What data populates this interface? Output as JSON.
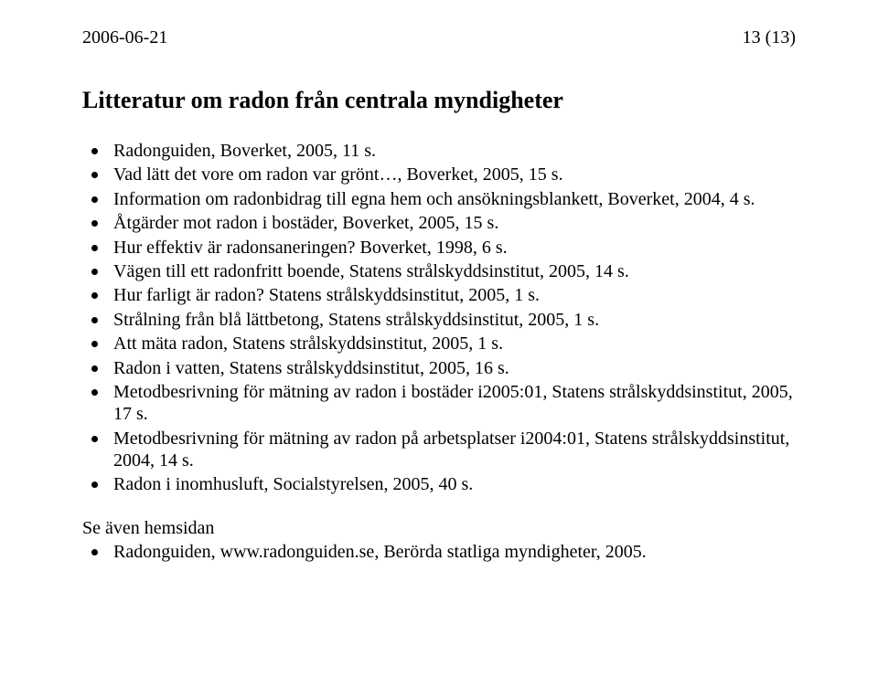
{
  "header": {
    "date": "2006-06-21",
    "page": "13 (13)"
  },
  "title": "Litteratur om radon från centrala myndigheter",
  "references": [
    "Radonguiden, Boverket, 2005, 11 s.",
    "Vad lätt det vore om radon var grönt…, Boverket, 2005, 15 s.",
    "Information om radonbidrag till egna hem och ansökningsblankett, Boverket, 2004, 4 s.",
    "Åtgärder mot radon i bostäder, Boverket, 2005, 15 s.",
    "Hur effektiv är radonsaneringen? Boverket, 1998, 6 s.",
    "Vägen till ett radonfritt boende, Statens strålskyddsinstitut, 2005, 14 s.",
    "Hur farligt är radon? Statens strålskyddsinstitut, 2005, 1 s.",
    "Strålning från blå lättbetong, Statens strålskyddsinstitut, 2005, 1 s.",
    "Att mäta radon, Statens strålskyddsinstitut, 2005, 1 s.",
    "Radon i vatten, Statens strålskyddsinstitut, 2005, 16 s.",
    "Metodbesrivning för mätning av radon i bostäder i2005:01, Statens strålskyddsinstitut, 2005, 17 s.",
    "Metodbesrivning för mätning av radon på arbetsplatser i2004:01, Statens strålskyddsinstitut, 2004, 14 s.",
    "Radon i inomhusluft, Socialstyrelsen, 2005, 40 s."
  ],
  "see_also_label": "Se även hemsidan",
  "see_also_items": [
    "Radonguiden, www.radonguiden.se, Berörda statliga myndigheter, 2005."
  ]
}
